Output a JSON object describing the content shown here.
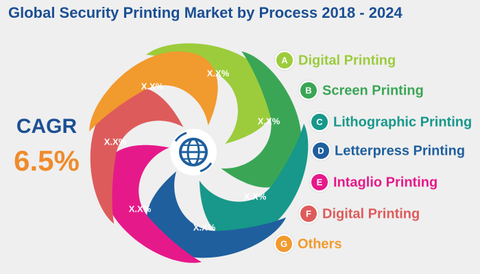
{
  "header": {
    "title": "Global Security Printing Market by Process 2018 - 2024"
  },
  "cagr": {
    "label": "CAGR",
    "value": "6.5%"
  },
  "segments": [
    {
      "label": "X.X%"
    },
    {
      "label": "X.X%"
    },
    {
      "label": "X.X%"
    },
    {
      "label": "X.X%"
    },
    {
      "label": "X.X%"
    },
    {
      "label": "X.X%"
    },
    {
      "label": "X.X%"
    }
  ],
  "legend": [
    {
      "letter": "A",
      "text": "Digital Printing"
    },
    {
      "letter": "B",
      "text": "Screen Printing"
    },
    {
      "letter": "C",
      "text": "Lithographic Printing"
    },
    {
      "letter": "D",
      "text": "Letterpress Printing"
    },
    {
      "letter": "E",
      "text": "Intaglio Printing"
    },
    {
      "letter": "F",
      "text": "Digital Printing"
    },
    {
      "letter": "G",
      "text": "Others"
    }
  ]
}
